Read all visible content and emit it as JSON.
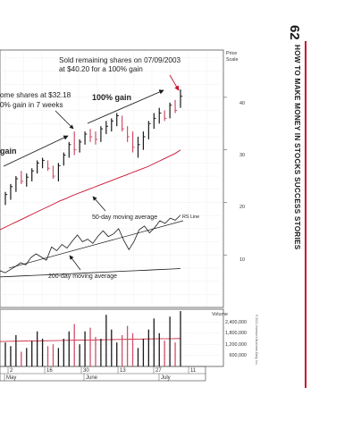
{
  "page_number": "62",
  "book_title": "HOW TO MAKE MONEY IN STOCKS SUCCESS STORIES",
  "copyright": "© 2021 Investor's Business Daily, Inc.",
  "colors": {
    "accent": "#c8102e",
    "up_bar": "#1a1a1a",
    "down_bar": "#d0506a",
    "moving_avg": "#c8102e",
    "grid": "#d6d6d6"
  },
  "chart_data": {
    "type": "line",
    "annotations": {
      "sold_note_line1": "Sold remaining shares on 07/09/2003",
      "sold_note_line2": "at $40.20 for a 100% gain",
      "partial_sale_line1": "ome shares at $32.18",
      "partial_sale_line2": "0% gain in 7 weeks",
      "gain_label": "100% gain",
      "gain_label_left": "gain",
      "ma50_label": "50-day moving average",
      "ma200_label": "200-day moving average",
      "rs_label": "RS Line"
    },
    "price_axis": {
      "title_line1": "Price",
      "title_line2": "Scale",
      "ticks": [
        "40",
        "30",
        "20",
        "10"
      ],
      "values": [
        40,
        30,
        20,
        10
      ],
      "ylim": [
        0,
        49
      ]
    },
    "volume_axis": {
      "title": "Volume",
      "ticks": [
        "2,400,000",
        "1,800,000",
        "1,200,000",
        "600,000"
      ],
      "values": [
        2400000,
        1800000,
        1200000,
        600000
      ],
      "ylim": [
        0,
        3100000
      ]
    },
    "x_axis": {
      "day_ticks": [
        "2",
        "16",
        "30",
        "13",
        "27",
        "11"
      ],
      "month_labels": [
        "May",
        "June",
        "July"
      ]
    },
    "price_bars": [
      {
        "h": 22.0,
        "l": 19.5,
        "c": 21.5,
        "up": true
      },
      {
        "h": 23.5,
        "l": 20.5,
        "c": 23.0,
        "up": true
      },
      {
        "h": 25.0,
        "l": 22.0,
        "c": 24.5,
        "up": true
      },
      {
        "h": 26.0,
        "l": 23.5,
        "c": 24.0,
        "up": false
      },
      {
        "h": 25.5,
        "l": 23.0,
        "c": 24.8,
        "up": true
      },
      {
        "h": 26.5,
        "l": 24.0,
        "c": 26.0,
        "up": true
      },
      {
        "h": 28.0,
        "l": 25.5,
        "c": 27.5,
        "up": true
      },
      {
        "h": 28.5,
        "l": 26.5,
        "c": 28.0,
        "up": true
      },
      {
        "h": 28.0,
        "l": 26.0,
        "c": 26.5,
        "up": false
      },
      {
        "h": 27.0,
        "l": 24.5,
        "c": 25.0,
        "up": false
      },
      {
        "h": 27.5,
        "l": 24.0,
        "c": 27.0,
        "up": true
      },
      {
        "h": 29.5,
        "l": 27.0,
        "c": 29.0,
        "up": true
      },
      {
        "h": 31.5,
        "l": 28.5,
        "c": 31.0,
        "up": true
      },
      {
        "h": 33.5,
        "l": 29.0,
        "c": 30.0,
        "up": false
      },
      {
        "h": 32.0,
        "l": 29.5,
        "c": 31.5,
        "up": true
      },
      {
        "h": 33.5,
        "l": 31.0,
        "c": 33.0,
        "up": true
      },
      {
        "h": 34.0,
        "l": 31.5,
        "c": 32.5,
        "up": false
      },
      {
        "h": 33.5,
        "l": 31.0,
        "c": 32.0,
        "up": false
      },
      {
        "h": 34.5,
        "l": 31.5,
        "c": 34.0,
        "up": true
      },
      {
        "h": 35.5,
        "l": 33.0,
        "c": 34.5,
        "up": true
      },
      {
        "h": 36.0,
        "l": 33.5,
        "c": 35.5,
        "up": true
      },
      {
        "h": 37.0,
        "l": 34.5,
        "c": 36.5,
        "up": true
      },
      {
        "h": 36.5,
        "l": 33.5,
        "c": 34.0,
        "up": false
      },
      {
        "h": 34.5,
        "l": 31.5,
        "c": 32.5,
        "up": false
      },
      {
        "h": 33.5,
        "l": 29.5,
        "c": 30.5,
        "up": false
      },
      {
        "h": 32.5,
        "l": 28.5,
        "c": 31.0,
        "up": true
      },
      {
        "h": 33.5,
        "l": 30.0,
        "c": 32.5,
        "up": true
      },
      {
        "h": 35.5,
        "l": 32.0,
        "c": 35.0,
        "up": true
      },
      {
        "h": 37.0,
        "l": 34.0,
        "c": 36.0,
        "up": true
      },
      {
        "h": 38.0,
        "l": 35.0,
        "c": 37.0,
        "up": true
      },
      {
        "h": 37.5,
        "l": 35.5,
        "c": 36.0,
        "up": false
      },
      {
        "h": 39.0,
        "l": 36.0,
        "c": 38.5,
        "up": true
      },
      {
        "h": 39.5,
        "l": 37.0,
        "c": 37.5,
        "up": false
      },
      {
        "h": 41.5,
        "l": 38.0,
        "c": 40.2,
        "up": true
      }
    ],
    "volume": [
      1300000,
      1100000,
      1700000,
      800000,
      1000000,
      1400000,
      1900000,
      1500000,
      1100000,
      1200000,
      1000000,
      1500000,
      1900000,
      2300000,
      1200000,
      1900000,
      2100000,
      1600000,
      1500000,
      2800000,
      2000000,
      1300000,
      1700000,
      2200000,
      1800000,
      1000000,
      1500000,
      2000000,
      2600000,
      1800000,
      1400000,
      2700000,
      1300000,
      3000000
    ],
    "ma50": [
      14.8,
      15.3,
      15.8,
      16.3,
      16.8,
      17.3,
      17.8,
      18.3,
      18.8,
      19.3,
      19.8,
      20.3,
      20.7,
      21.2,
      21.6,
      22.0,
      22.4,
      22.8,
      23.2,
      23.6,
      24.0,
      24.4,
      24.8,
      25.2,
      25.6,
      26.0,
      26.4,
      26.8,
      27.3,
      27.8,
      28.3,
      28.8,
      29.3,
      30.0
    ],
    "ma200": [
      5.8,
      5.9,
      6.0,
      6.1,
      6.2,
      6.3,
      6.4,
      6.5,
      6.6,
      6.7,
      6.8,
      6.9,
      7.0,
      7.1,
      7.2,
      7.3,
      7.4
    ],
    "rs_line": [
      7.0,
      6.6,
      7.2,
      7.8,
      8.5,
      8.1,
      9.5,
      10.2,
      9.6,
      9.0,
      11.5,
      10.8,
      12.0,
      11.3,
      12.6,
      13.8,
      12.5,
      13.0,
      12.2,
      13.6,
      14.6,
      13.5,
      14.0,
      15.0,
      12.8,
      11.0,
      12.6,
      14.8,
      15.5,
      14.2,
      15.2,
      16.5,
      16.0,
      17.0,
      16.6,
      17.6
    ],
    "volume_ma": [
      1350000,
      1360000,
      1370000,
      1380000,
      1390000,
      1400000,
      1410000,
      1420000,
      1430000,
      1440000,
      1450000,
      1460000,
      1470000,
      1480000,
      1490000,
      1500000,
      1500000,
      1510000
    ]
  }
}
